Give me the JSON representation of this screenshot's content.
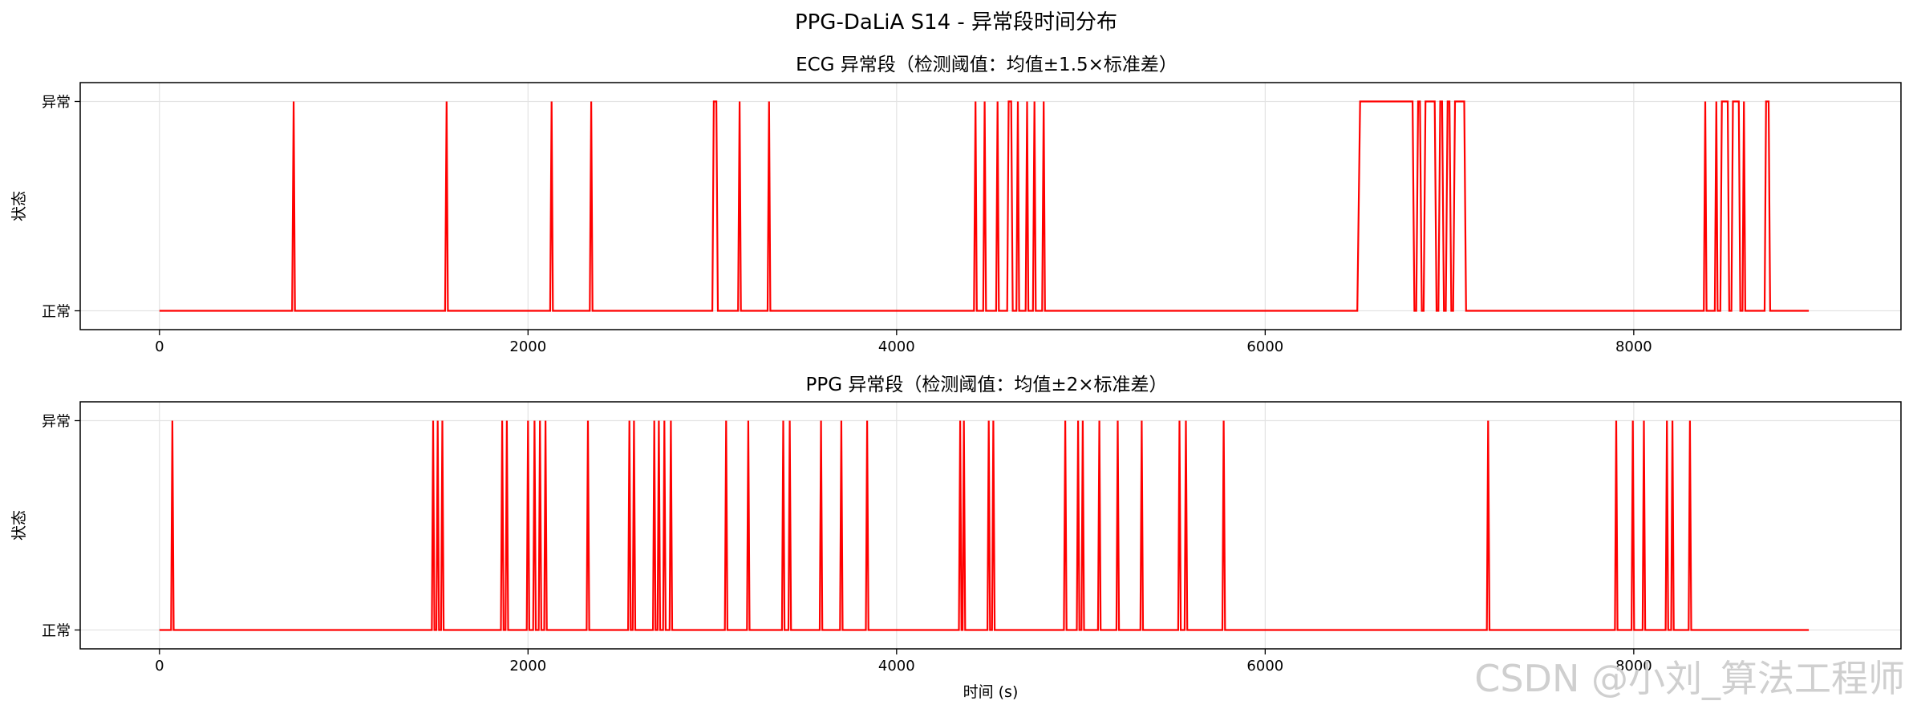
{
  "figure": {
    "suptitle": "PPG-DaLiA S14 - 异常段时间分布",
    "watermark": "CSDN @小刘_算法工程师"
  },
  "chart_data": [
    {
      "type": "line",
      "title": "ECG 异常段（检测阈值：均值±1.5×标准差）",
      "xlabel": "",
      "ylabel": "状态",
      "xlim": [
        -430,
        9450
      ],
      "ylim": [
        -0.09,
        1.09
      ],
      "xticks": [
        0,
        2000,
        4000,
        6000,
        8000
      ],
      "yticks": [
        {
          "value": 0,
          "label": "正常"
        },
        {
          "value": 1,
          "label": "异常"
        }
      ],
      "grid": true,
      "color": "#ff0000",
      "x_range": [
        0,
        8950
      ],
      "series": [
        {
          "values": [
            [
              0,
              0
            ],
            [
              720,
              0
            ],
            [
              728,
              1
            ],
            [
              735,
              0
            ],
            [
              1550,
              0
            ],
            [
              1558,
              1
            ],
            [
              1565,
              0
            ],
            [
              2120,
              0
            ],
            [
              2128,
              1
            ],
            [
              2135,
              0
            ],
            [
              2335,
              0
            ],
            [
              2343,
              1
            ],
            [
              2350,
              0
            ],
            [
              3000,
              0
            ],
            [
              3008,
              1
            ],
            [
              3022,
              1
            ],
            [
              3030,
              0
            ],
            [
              3140,
              0
            ],
            [
              3148,
              1
            ],
            [
              3155,
              0
            ],
            [
              3300,
              0
            ],
            [
              3308,
              1
            ],
            [
              3315,
              0
            ],
            [
              4420,
              0
            ],
            [
              4428,
              1
            ],
            [
              4435,
              0
            ],
            [
              4470,
              0
            ],
            [
              4478,
              1
            ],
            [
              4485,
              0
            ],
            [
              4540,
              0
            ],
            [
              4548,
              1
            ],
            [
              4555,
              0
            ],
            [
              4600,
              0
            ],
            [
              4608,
              1
            ],
            [
              4622,
              1
            ],
            [
              4630,
              0
            ],
            [
              4650,
              0
            ],
            [
              4658,
              1
            ],
            [
              4665,
              0
            ],
            [
              4700,
              0
            ],
            [
              4708,
              1
            ],
            [
              4715,
              0
            ],
            [
              4740,
              0
            ],
            [
              4748,
              1
            ],
            [
              4755,
              0
            ],
            [
              4790,
              0
            ],
            [
              4798,
              1
            ],
            [
              4805,
              0
            ],
            [
              6500,
              0
            ],
            [
              6515,
              1
            ],
            [
              6800,
              1
            ],
            [
              6810,
              0
            ],
            [
              6820,
              0
            ],
            [
              6830,
              1
            ],
            [
              6840,
              1
            ],
            [
              6850,
              0
            ],
            [
              6860,
              0
            ],
            [
              6870,
              1
            ],
            [
              6920,
              1
            ],
            [
              6930,
              0
            ],
            [
              6940,
              0
            ],
            [
              6950,
              1
            ],
            [
              6960,
              1
            ],
            [
              6970,
              0
            ],
            [
              6980,
              0
            ],
            [
              6990,
              1
            ],
            [
              7000,
              1
            ],
            [
              7010,
              0
            ],
            [
              7020,
              0
            ],
            [
              7030,
              1
            ],
            [
              7080,
              1
            ],
            [
              7090,
              0
            ],
            [
              8380,
              0
            ],
            [
              8388,
              1
            ],
            [
              8395,
              0
            ],
            [
              8440,
              0
            ],
            [
              8448,
              1
            ],
            [
              8455,
              0
            ],
            [
              8470,
              0
            ],
            [
              8478,
              1
            ],
            [
              8510,
              1
            ],
            [
              8518,
              0
            ],
            [
              8530,
              0
            ],
            [
              8538,
              1
            ],
            [
              8570,
              1
            ],
            [
              8578,
              0
            ],
            [
              8590,
              0
            ],
            [
              8598,
              1
            ],
            [
              8605,
              0
            ],
            [
              8710,
              0
            ],
            [
              8718,
              1
            ],
            [
              8732,
              1
            ],
            [
              8740,
              0
            ],
            [
              8950,
              0
            ]
          ]
        }
      ]
    },
    {
      "type": "line",
      "title": "PPG 异常段（检测阈值：均值±2×标准差）",
      "xlabel": "时间 (s)",
      "ylabel": "状态",
      "xlim": [
        -430,
        9450
      ],
      "ylim": [
        -0.09,
        1.09
      ],
      "xticks": [
        0,
        2000,
        4000,
        6000,
        8000
      ],
      "yticks": [
        {
          "value": 0,
          "label": "正常"
        },
        {
          "value": 1,
          "label": "异常"
        }
      ],
      "grid": true,
      "color": "#ff0000",
      "x_range": [
        0,
        8950
      ],
      "spikes": [
        70,
        1485,
        1510,
        1535,
        1860,
        1885,
        2000,
        2035,
        2065,
        2095,
        2325,
        2550,
        2575,
        2685,
        2710,
        2740,
        2775,
        3075,
        3195,
        3385,
        3420,
        3590,
        3700,
        3840,
        4345,
        4365,
        4500,
        4525,
        4915,
        4985,
        5010,
        5100,
        5200,
        5330,
        5535,
        5570,
        5775,
        7210,
        7905,
        7995,
        8055,
        8180,
        8210,
        8305
      ]
    }
  ]
}
